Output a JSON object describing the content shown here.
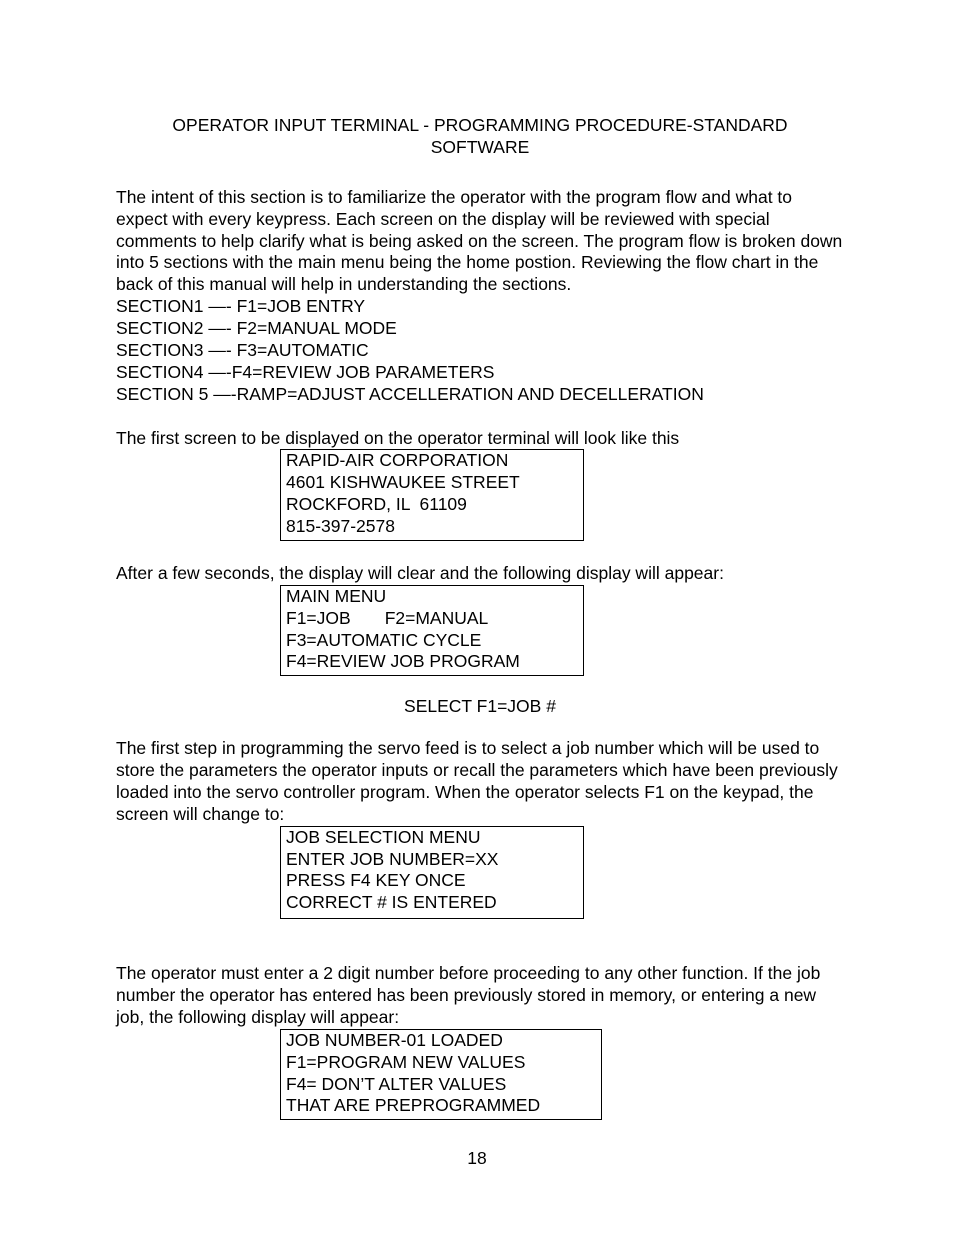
{
  "title_line1": "OPERATOR INPUT TERMINAL - PROGRAMMING PROCEDURE-STANDARD",
  "title_line2": "SOFTWARE",
  "intro_paragraph": "The intent of this section is to familiarize the operator with the program flow and what to expect with every keypress.  Each screen on the display will be reviewed with special comments to help clarify what is being asked on the screen.  The program flow is broken down into 5 sections with the main menu being the home postion.  Reviewing the flow chart in the back of this manual will help in understanding the sections.",
  "sections": {
    "s1": "SECTION1 —- F1=JOB ENTRY",
    "s2": "SECTION2 —- F2=MANUAL MODE",
    "s3": "SECTION3 —- F3=AUTOMATIC",
    "s4": "SECTION4 —-F4=REVIEW JOB PARAMETERS",
    "s5": "SECTION 5 —-RAMP=ADJUST ACCELLERATION AND DECELLERATION"
  },
  "lead1": "The first screen to be displayed on the operator terminal will look like this",
  "screen1": {
    "r1": "RAPID-AIR CORPORATION",
    "r2": "4601 KISHWAUKEE STREET",
    "r3": "ROCKFORD, IL  61109",
    "r4": "815-397-2578"
  },
  "lead2": "After a few seconds, the display will clear and the following display will appear:",
  "screen2": {
    "r1": "MAIN MENU",
    "r2": "F1=JOB       F2=MANUAL",
    "r3": "F3=AUTOMATIC CYCLE",
    "r4": "F4=REVIEW JOB PROGRAM"
  },
  "subheading": "SELECT F1=JOB #",
  "para2": "The first step in programming the servo feed is to select a job number which will be used to store the parameters the operator inputs or recall the parameters which have been previously loaded into the servo controller program.  When the operator selects F1 on the keypad, the screen will change to:",
  "screen3": {
    "r1": "JOB SELECTION MENU",
    "r2": "ENTER JOB NUMBER=XX",
    "r3": "PRESS F4 KEY ONCE",
    "r4": "CORRECT # IS ENTERED"
  },
  "para3": "The operator must enter a 2 digit number before proceeding to any other function.  If the job number the operator has entered has been previously stored in memory, or entering a new job, the following display will appear:",
  "screen4": {
    "r1": "JOB NUMBER-01 LOADED",
    "r2": "F1=PROGRAM NEW VALUES",
    "r3": "F4= DON’T ALTER VALUES",
    "r4": "THAT ARE PREPROGRAMMED"
  },
  "page_number": "18"
}
